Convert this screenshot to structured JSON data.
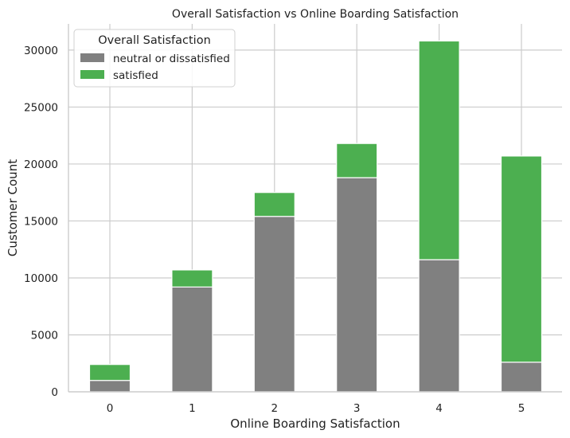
{
  "chart_data": {
    "type": "bar",
    "stacked": true,
    "title": "Overall Satisfaction vs Online Boarding Satisfaction",
    "xlabel": "Online Boarding Satisfaction",
    "ylabel": "Customer Count",
    "categories": [
      "0",
      "1",
      "2",
      "3",
      "4",
      "5"
    ],
    "ylim": [
      0,
      32300
    ],
    "yticks": [
      0,
      5000,
      10000,
      15000,
      20000,
      25000,
      30000
    ],
    "grid": true,
    "legend": {
      "title": "Overall Satisfaction",
      "placement": "top-left"
    },
    "series": [
      {
        "name": "neutral or dissatisfied",
        "color": "#808080",
        "values": [
          1000,
          9200,
          15400,
          18800,
          11600,
          2600
        ]
      },
      {
        "name": "satisfied",
        "color": "#4caf50",
        "values": [
          1400,
          1500,
          2100,
          3000,
          19200,
          18100
        ]
      }
    ]
  }
}
